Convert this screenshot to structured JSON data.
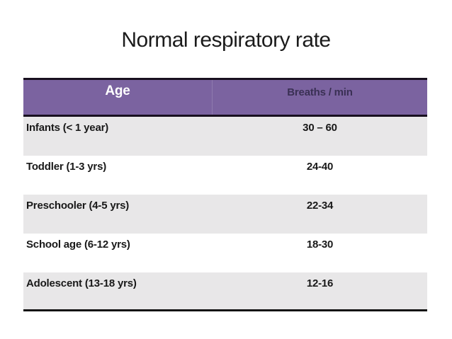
{
  "slide": {
    "title": "Normal respiratory rate"
  },
  "table": {
    "columns": {
      "age": "Age",
      "breaths": "Breaths / min"
    },
    "rows": [
      {
        "age": "Infants (< 1 year)",
        "breaths": "30 – 60"
      },
      {
        "age": "Toddler (1-3 yrs)",
        "breaths": "24-40"
      },
      {
        "age": "Preschooler (4-5 yrs)",
        "breaths": "22-34"
      },
      {
        "age": "School age (6-12 yrs)",
        "breaths": "18-30"
      },
      {
        "age": "Adolescent (13-18 yrs)",
        "breaths": "12-16"
      }
    ],
    "colors": {
      "header_bg": "#7b63a0",
      "header_age_text": "#ffffff",
      "header_breaths_text": "#3a3054",
      "row_alt_bg": "#e8e7e8",
      "row_bg": "#ffffff",
      "border": "#18101f",
      "body_text": "#191919"
    }
  }
}
